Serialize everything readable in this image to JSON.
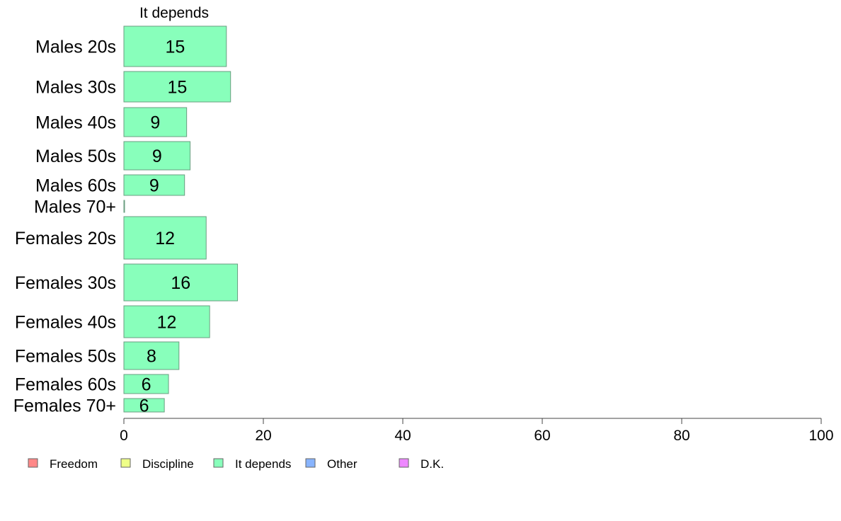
{
  "chart_data": {
    "type": "bar",
    "orientation": "horizontal",
    "title": "It depends",
    "categories": [
      "Males 20s",
      "Males 30s",
      "Males 40s",
      "Males 50s",
      "Males 60s",
      "Males 70+",
      "Females 20s",
      "Females 30s",
      "Females 40s",
      "Females 50s",
      "Females 60s",
      "Females 70+"
    ],
    "series": [
      {
        "name": "It depends",
        "color": "#88ffbb",
        "values": [
          14.7,
          15.3,
          9.0,
          9.5,
          8.7,
          0.1,
          11.8,
          16.3,
          12.3,
          7.9,
          6.4,
          5.8
        ],
        "labels": [
          "15",
          "15",
          "9",
          "9",
          "9",
          "",
          "12",
          "16",
          "12",
          "8",
          "6",
          "6"
        ]
      }
    ],
    "xlim": [
      0,
      100
    ],
    "xticks": [
      "0",
      "20",
      "40",
      "60",
      "80",
      "100"
    ],
    "grid": false,
    "legend": {
      "position": "bottom-left",
      "items": [
        {
          "label": "Freedom",
          "color": "#ff8888"
        },
        {
          "label": "Discipline",
          "color": "#eeff88"
        },
        {
          "label": "It depends",
          "color": "#88ffbb"
        },
        {
          "label": "Other",
          "color": "#88b4ff"
        },
        {
          "label": "D.K.",
          "color": "#ee88ff"
        }
      ]
    }
  }
}
